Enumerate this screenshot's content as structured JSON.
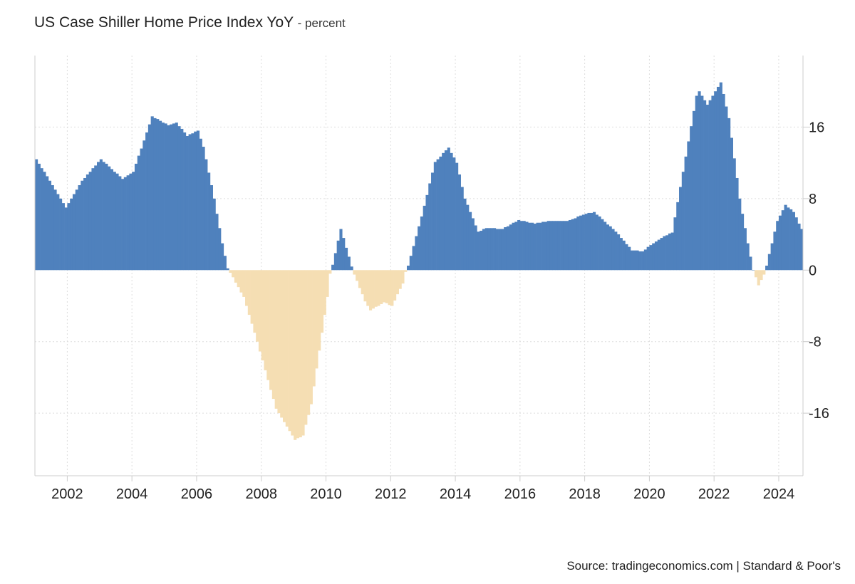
{
  "title": "US Case Shiller Home Price Index YoY",
  "subtitle": "- percent",
  "source": "Source: tradingeconomics.com | Standard & Poor's",
  "colors": {
    "positive": "#4f81bd",
    "negative": "#f5deb3",
    "grid": "#dddddd",
    "axis": "#cccccc"
  },
  "chart_data": {
    "type": "bar",
    "frequency": "monthly",
    "start": "2001-01",
    "end": "2024-09",
    "xlim": [
      "2001-01",
      "2024-10"
    ],
    "ylim": [
      -23,
      24
    ],
    "y_ticks": [
      16,
      8,
      0,
      -8,
      -16
    ],
    "y_tick_labels": [
      "16",
      "8",
      "0",
      "-8",
      "-16"
    ],
    "x_ticks": [
      "2002",
      "2004",
      "2006",
      "2008",
      "2010",
      "2012",
      "2014",
      "2016",
      "2018",
      "2020",
      "2022",
      "2024"
    ],
    "grid": true,
    "y_axis_side": "right",
    "anchors": [
      [
        "2001-01",
        12.4
      ],
      [
        "2001-06",
        10.0
      ],
      [
        "2001-12",
        7.0
      ],
      [
        "2002-06",
        10.0
      ],
      [
        "2003-01",
        12.4
      ],
      [
        "2003-09",
        10.2
      ],
      [
        "2004-01",
        11.0
      ],
      [
        "2004-05",
        14.5
      ],
      [
        "2004-08",
        17.2
      ],
      [
        "2005-02",
        16.2
      ],
      [
        "2005-05",
        16.5
      ],
      [
        "2005-09",
        15.0
      ],
      [
        "2006-01",
        15.6
      ],
      [
        "2006-03",
        13.8
      ],
      [
        "2006-07",
        8.0
      ],
      [
        "2006-10",
        3.0
      ],
      [
        "2006-12",
        0.2
      ],
      [
        "2007-01",
        -0.3
      ],
      [
        "2007-06",
        -3.0
      ],
      [
        "2007-11",
        -8.0
      ],
      [
        "2008-06",
        -15.5
      ],
      [
        "2008-10",
        -17.5
      ],
      [
        "2009-01",
        -19.0
      ],
      [
        "2009-04",
        -18.5
      ],
      [
        "2009-07",
        -15.0
      ],
      [
        "2009-10",
        -9.0
      ],
      [
        "2010-01",
        -3.0
      ],
      [
        "2010-02",
        -0.4
      ],
      [
        "2010-03",
        0.6
      ],
      [
        "2010-06",
        4.6
      ],
      [
        "2010-09",
        1.5
      ],
      [
        "2010-10",
        0.4
      ],
      [
        "2010-11",
        -0.5
      ],
      [
        "2011-03",
        -3.5
      ],
      [
        "2011-05",
        -4.5
      ],
      [
        "2011-10",
        -3.6
      ],
      [
        "2012-01",
        -4.0
      ],
      [
        "2012-05",
        -1.5
      ],
      [
        "2012-06",
        -0.2
      ],
      [
        "2012-07",
        0.5
      ],
      [
        "2012-12",
        6.0
      ],
      [
        "2013-05",
        12.1
      ],
      [
        "2013-10",
        13.7
      ],
      [
        "2014-01",
        12.0
      ],
      [
        "2014-04",
        8.0
      ],
      [
        "2014-09",
        4.3
      ],
      [
        "2014-12",
        4.7
      ],
      [
        "2015-06",
        4.6
      ],
      [
        "2015-12",
        5.6
      ],
      [
        "2016-06",
        5.2
      ],
      [
        "2016-12",
        5.5
      ],
      [
        "2017-06",
        5.5
      ],
      [
        "2018-01",
        6.3
      ],
      [
        "2018-04",
        6.5
      ],
      [
        "2018-12",
        4.3
      ],
      [
        "2019-06",
        2.2
      ],
      [
        "2019-10",
        2.1
      ],
      [
        "2020-02",
        3.0
      ],
      [
        "2020-06",
        3.8
      ],
      [
        "2020-09",
        4.2
      ],
      [
        "2021-01",
        11.0
      ],
      [
        "2021-06",
        19.5
      ],
      [
        "2021-07",
        20.0
      ],
      [
        "2021-10",
        18.5
      ],
      [
        "2022-03",
        21.0
      ],
      [
        "2022-06",
        17.0
      ],
      [
        "2022-10",
        8.0
      ],
      [
        "2023-01",
        3.0
      ],
      [
        "2023-03",
        0.0
      ],
      [
        "2023-05",
        -1.7
      ],
      [
        "2023-07",
        -0.5
      ],
      [
        "2023-08",
        0.5
      ],
      [
        "2023-12",
        5.5
      ],
      [
        "2024-03",
        7.3
      ],
      [
        "2024-06",
        6.5
      ],
      [
        "2024-09",
        4.6
      ]
    ]
  }
}
